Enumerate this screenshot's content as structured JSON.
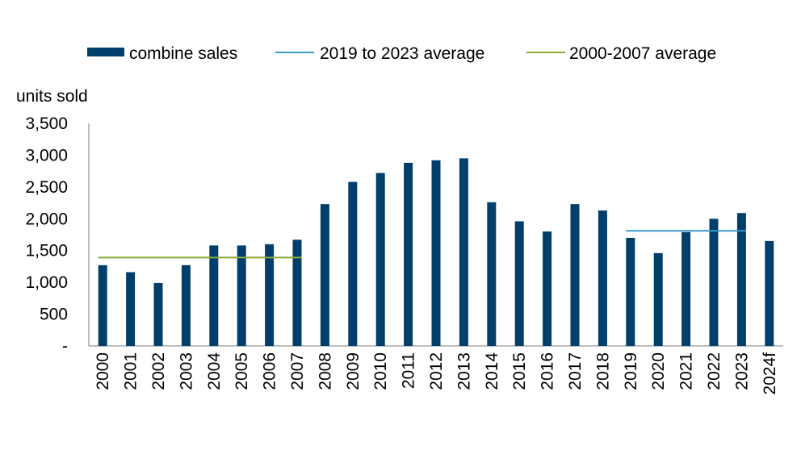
{
  "chart_data": {
    "type": "bar",
    "title": "",
    "xlabel": "",
    "ylabel": "units sold",
    "ylim": [
      0,
      3500
    ],
    "yticks": [
      0,
      500,
      1000,
      1500,
      2000,
      2500,
      3000,
      3500
    ],
    "ytick_labels": [
      "-",
      "500",
      "1,000",
      "1,500",
      "2,000",
      "2,500",
      "3,000",
      "3,500"
    ],
    "grid": false,
    "legend_position": "top",
    "categories": [
      "2000",
      "2001",
      "2002",
      "2003",
      "2004",
      "2005",
      "2006",
      "2007",
      "2008",
      "2009",
      "2010",
      "2011",
      "2012",
      "2013",
      "2014",
      "2015",
      "2016",
      "2017",
      "2018",
      "2019",
      "2020",
      "2021",
      "2022",
      "2023",
      "2024f"
    ],
    "series": [
      {
        "name": "combine sales",
        "color": "#003F6B",
        "values": [
          1270,
          1160,
          990,
          1270,
          1580,
          1580,
          1600,
          1670,
          2230,
          2580,
          2720,
          2880,
          2920,
          2950,
          2260,
          1960,
          1800,
          2230,
          2130,
          1700,
          1460,
          1790,
          2000,
          2090,
          1650
        ]
      }
    ],
    "reference_lines": [
      {
        "name": "2019 to 2023 average",
        "color": "#3A9BC9",
        "value": 1810,
        "from": "2019",
        "to": "2023"
      },
      {
        "name": "2000-2007 average",
        "color": "#8BAA3A",
        "value": 1390,
        "from": "2000",
        "to": "2007"
      }
    ]
  }
}
